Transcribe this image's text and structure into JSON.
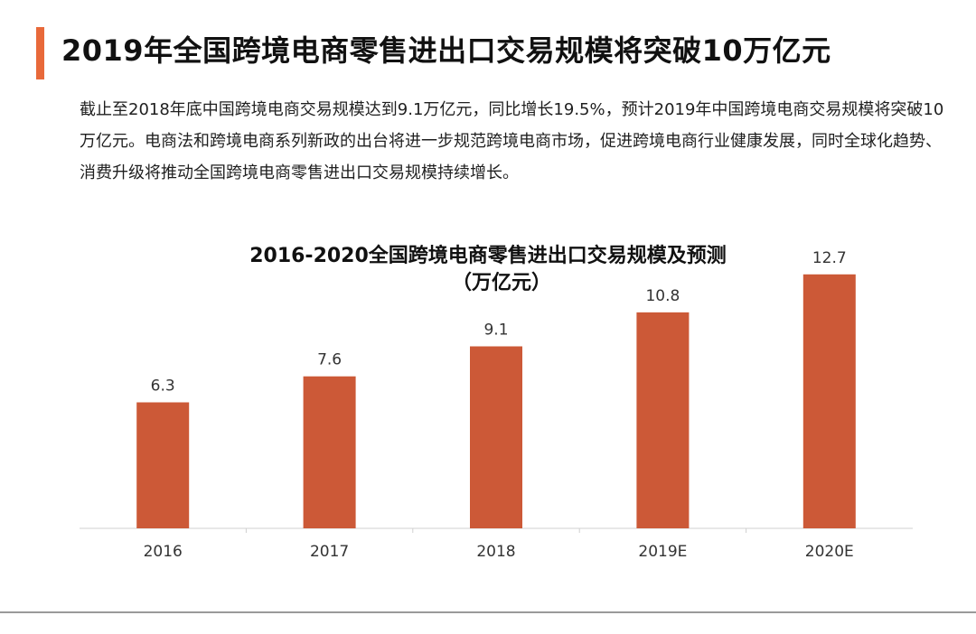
{
  "page": {
    "title": "2019年全国跨境电商零售进出口交易规模将突破10万亿元",
    "intro": "截止至2018年底中国跨境电商交易规模达到9.1万亿元，同比增长19.5%，预计2019年中国跨境电商交易规模将突破10万亿元。电商法和跨境电商系列新政的出台将进一步规范跨境电商市场，促进跨境电商行业健康发展，同时全球化趋势、消费升级将推动全国跨境电商零售进出口交易规模持续增长。",
    "accent_color": "#E8693A"
  },
  "chart_data": {
    "type": "bar",
    "title": "2016-2020全国跨境电商零售进出口交易规模及预测",
    "subtitle": "（万亿元）",
    "categories": [
      "2016",
      "2017",
      "2018",
      "2019E",
      "2020E"
    ],
    "values": [
      6.3,
      7.6,
      9.1,
      10.8,
      12.7
    ],
    "ylim": [
      0,
      14
    ],
    "bar_color": "#CC5937",
    "grid": false,
    "legend": "none",
    "data_labels": true
  }
}
